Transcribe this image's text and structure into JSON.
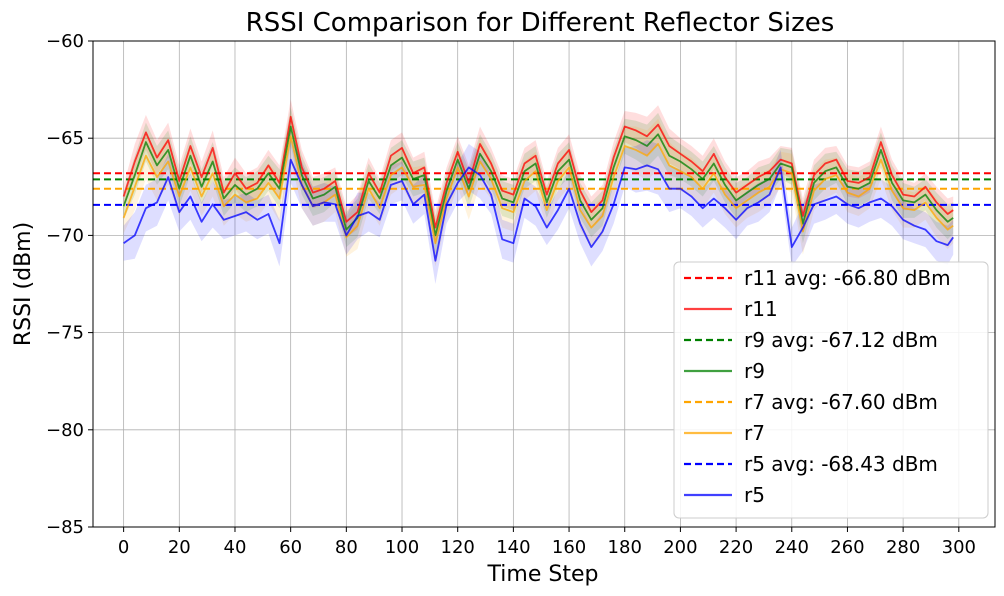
{
  "chart_data": {
    "type": "line",
    "title": "RSSI Comparison for Different Reflector Sizes",
    "xlabel": "Time Step",
    "ylabel": "RSSI (dBm)",
    "xlim": [
      -11,
      313
    ],
    "ylim": [
      -85,
      -60
    ],
    "xticks": [
      0,
      20,
      40,
      60,
      80,
      100,
      120,
      140,
      160,
      180,
      200,
      220,
      240,
      260,
      280,
      300
    ],
    "yticks": [
      -85,
      -80,
      -75,
      -70,
      -65,
      -60
    ],
    "xtick_labels": [
      "0",
      "20",
      "40",
      "60",
      "80",
      "100",
      "120",
      "140",
      "160",
      "180",
      "200",
      "220",
      "240",
      "260",
      "280",
      "300"
    ],
    "ytick_labels": [
      "−85",
      "−80",
      "−75",
      "−70",
      "−65",
      "−60"
    ],
    "grid": true,
    "legend_position": "lower-right",
    "x_points": [
      0,
      4,
      8,
      12,
      16,
      20,
      24,
      28,
      32,
      36,
      40,
      44,
      48,
      52,
      56,
      60,
      64,
      68,
      72,
      76,
      80,
      84,
      88,
      92,
      96,
      100,
      104,
      108,
      112,
      116,
      120,
      124,
      128,
      132,
      136,
      140,
      144,
      148,
      152,
      156,
      160,
      164,
      168,
      172,
      176,
      180,
      184,
      188,
      192,
      196,
      200,
      204,
      208,
      212,
      216,
      220,
      224,
      228,
      232,
      236,
      240,
      244,
      248,
      252,
      256,
      260,
      264,
      268,
      272,
      276,
      280,
      284,
      288,
      292,
      296,
      298
    ],
    "series": [
      {
        "name": "r11",
        "color": "#ff0000",
        "avg": -66.8,
        "avg_label": "r11 avg: -66.80 dBm",
        "values": [
          -68.0,
          -66.2,
          -64.7,
          -66.0,
          -65.1,
          -67.2,
          -65.4,
          -67.0,
          -65.5,
          -67.8,
          -66.8,
          -67.6,
          -67.3,
          -66.4,
          -67.3,
          -63.9,
          -66.5,
          -67.8,
          -67.6,
          -67.2,
          -69.3,
          -68.8,
          -66.8,
          -67.8,
          -65.9,
          -65.5,
          -66.8,
          -66.5,
          -69.6,
          -67.3,
          -65.7,
          -67.3,
          -65.3,
          -66.3,
          -67.7,
          -67.9,
          -66.3,
          -65.9,
          -67.9,
          -66.3,
          -65.6,
          -67.7,
          -68.8,
          -68.2,
          -66.0,
          -64.4,
          -64.6,
          -64.9,
          -64.3,
          -65.4,
          -65.8,
          -66.2,
          -66.7,
          -65.8,
          -67.0,
          -67.8,
          -67.4,
          -67.0,
          -66.7,
          -66.1,
          -66.3,
          -69.0,
          -66.9,
          -66.3,
          -66.1,
          -67.2,
          -67.3,
          -67.0,
          -65.2,
          -66.9,
          -67.9,
          -68.0,
          -67.5,
          -68.3,
          -68.9,
          -68.7
        ],
        "band": [
          0.6,
          0.9,
          0.9,
          0.9,
          0.9,
          0.8,
          0.9,
          0.8,
          0.9,
          0.8,
          0.8,
          0.8,
          0.8,
          0.8,
          0.9,
          0.9,
          0.9,
          0.8,
          0.8,
          0.7,
          0.8,
          0.9,
          0.8,
          0.7,
          0.8,
          0.8,
          0.8,
          0.8,
          0.9,
          0.8,
          0.8,
          0.9,
          0.9,
          0.8,
          0.8,
          0.8,
          0.8,
          0.8,
          0.7,
          0.8,
          0.8,
          0.8,
          0.8,
          0.8,
          0.8,
          0.8,
          0.9,
          1.0,
          1.0,
          0.9,
          0.8,
          0.8,
          0.8,
          0.8,
          0.8,
          0.8,
          0.7,
          0.8,
          0.7,
          0.7,
          0.8,
          0.9,
          0.8,
          0.8,
          0.7,
          0.8,
          0.8,
          0.8,
          0.8,
          0.8,
          0.8,
          0.7,
          0.7,
          0.8,
          0.8,
          0.7
        ]
      },
      {
        "name": "r9",
        "color": "#008000",
        "avg": -67.12,
        "avg_label": "r9 avg: -67.12 dBm",
        "values": [
          -68.5,
          -66.9,
          -65.2,
          -66.4,
          -65.6,
          -67.6,
          -65.9,
          -67.5,
          -66.2,
          -68.1,
          -67.4,
          -67.9,
          -67.6,
          -66.8,
          -67.6,
          -64.4,
          -66.9,
          -68.1,
          -67.9,
          -67.5,
          -69.7,
          -69.1,
          -67.2,
          -68.1,
          -66.4,
          -66.0,
          -67.1,
          -66.9,
          -70.0,
          -67.7,
          -66.1,
          -67.6,
          -65.8,
          -66.7,
          -68.1,
          -68.3,
          -66.7,
          -66.3,
          -68.3,
          -66.7,
          -66.1,
          -68.2,
          -69.2,
          -68.6,
          -66.5,
          -64.9,
          -65.1,
          -65.4,
          -64.8,
          -65.9,
          -66.2,
          -66.6,
          -67.1,
          -66.3,
          -67.4,
          -68.2,
          -67.8,
          -67.4,
          -67.1,
          -66.3,
          -66.5,
          -69.4,
          -67.3,
          -66.7,
          -66.5,
          -67.5,
          -67.6,
          -67.3,
          -65.6,
          -67.3,
          -68.2,
          -68.3,
          -67.9,
          -68.7,
          -69.3,
          -69.1
        ],
        "band": [
          0.7,
          1.0,
          1.0,
          1.0,
          1.0,
          0.9,
          1.0,
          0.9,
          1.0,
          0.9,
          0.9,
          0.9,
          0.9,
          0.9,
          1.0,
          1.0,
          1.0,
          0.9,
          0.9,
          0.8,
          0.9,
          1.0,
          0.9,
          0.8,
          0.9,
          0.9,
          0.9,
          0.9,
          1.0,
          0.9,
          0.9,
          1.0,
          1.0,
          0.9,
          0.9,
          0.9,
          0.9,
          0.9,
          0.8,
          0.9,
          0.9,
          0.9,
          0.9,
          0.9,
          0.9,
          0.9,
          1.0,
          1.1,
          1.1,
          1.0,
          0.9,
          0.9,
          0.9,
          0.9,
          0.9,
          0.9,
          0.8,
          0.9,
          0.8,
          0.8,
          0.9,
          1.0,
          0.9,
          0.9,
          0.8,
          0.9,
          0.9,
          0.9,
          0.9,
          0.9,
          0.9,
          0.8,
          0.8,
          0.9,
          0.9,
          0.8
        ]
      },
      {
        "name": "r7",
        "color": "#ffa500",
        "avg": -67.6,
        "avg_label": "r7 avg: -67.60 dBm",
        "values": [
          -69.1,
          -67.5,
          -65.9,
          -67.0,
          -66.2,
          -68.0,
          -66.5,
          -68.0,
          -66.8,
          -68.5,
          -67.9,
          -68.3,
          -68.1,
          -67.3,
          -68.1,
          -64.9,
          -67.4,
          -68.5,
          -68.3,
          -67.9,
          -70.1,
          -69.5,
          -67.6,
          -68.6,
          -66.9,
          -66.5,
          -67.5,
          -67.4,
          -70.4,
          -68.1,
          -66.5,
          -68.0,
          -66.2,
          -67.1,
          -68.6,
          -68.8,
          -67.2,
          -66.7,
          -68.7,
          -67.2,
          -66.5,
          -68.7,
          -69.6,
          -69.0,
          -67.0,
          -65.4,
          -65.6,
          -65.9,
          -65.3,
          -66.4,
          -66.7,
          -67.0,
          -67.6,
          -66.8,
          -67.9,
          -68.6,
          -68.2,
          -67.8,
          -67.5,
          -66.6,
          -66.8,
          -69.8,
          -67.7,
          -67.1,
          -66.9,
          -67.8,
          -68.0,
          -67.6,
          -66.1,
          -67.7,
          -68.6,
          -68.7,
          -68.3,
          -69.1,
          -69.7,
          -69.5
        ],
        "band": [
          0.8,
          1.2,
          1.2,
          1.2,
          1.2,
          1.0,
          1.2,
          1.0,
          1.2,
          1.0,
          1.0,
          1.0,
          1.0,
          1.0,
          1.2,
          1.2,
          1.2,
          1.0,
          1.0,
          0.9,
          1.0,
          1.2,
          1.0,
          0.9,
          1.0,
          1.0,
          1.0,
          1.0,
          1.2,
          1.0,
          1.0,
          1.2,
          1.2,
          1.0,
          1.0,
          1.0,
          1.0,
          1.0,
          0.9,
          1.0,
          1.0,
          1.0,
          1.0,
          1.0,
          1.0,
          1.0,
          1.2,
          1.3,
          1.3,
          1.2,
          1.0,
          1.0,
          1.0,
          1.0,
          1.0,
          1.0,
          0.9,
          1.0,
          0.9,
          0.9,
          1.0,
          1.2,
          1.0,
          1.0,
          0.9,
          1.0,
          1.0,
          1.0,
          1.0,
          1.0,
          1.0,
          0.9,
          0.9,
          1.0,
          1.0,
          0.9
        ]
      },
      {
        "name": "r5",
        "color": "#0000ff",
        "avg": -68.43,
        "avg_label": "r5 avg: -68.43 dBm",
        "values": [
          -70.4,
          -70.0,
          -68.6,
          -68.3,
          -67.0,
          -68.8,
          -68.0,
          -69.3,
          -68.4,
          -69.2,
          -69.0,
          -68.8,
          -69.2,
          -68.9,
          -70.4,
          -66.1,
          -67.4,
          -68.5,
          -68.3,
          -68.4,
          -70.0,
          -69.0,
          -68.8,
          -69.2,
          -67.4,
          -67.2,
          -68.4,
          -67.9,
          -71.3,
          -68.4,
          -67.3,
          -66.5,
          -66.9,
          -67.9,
          -70.2,
          -70.4,
          -68.1,
          -68.5,
          -69.6,
          -68.7,
          -67.6,
          -69.4,
          -70.6,
          -69.8,
          -68.4,
          -66.5,
          -66.6,
          -66.4,
          -66.6,
          -67.6,
          -67.6,
          -68.0,
          -68.6,
          -68.1,
          -68.6,
          -69.2,
          -68.6,
          -68.3,
          -67.9,
          -66.5,
          -70.6,
          -69.6,
          -68.4,
          -68.2,
          -68.0,
          -68.4,
          -68.6,
          -68.3,
          -68.1,
          -68.5,
          -69.2,
          -69.5,
          -69.7,
          -70.3,
          -70.5,
          -70.1
        ],
        "band": [
          0.9,
          1.2,
          1.2,
          1.2,
          1.2,
          1.0,
          1.2,
          1.0,
          1.2,
          1.0,
          1.0,
          1.0,
          1.0,
          1.0,
          1.2,
          1.2,
          1.2,
          1.0,
          1.0,
          0.9,
          1.0,
          1.2,
          1.0,
          0.9,
          1.0,
          1.0,
          1.0,
          1.0,
          1.2,
          1.0,
          1.0,
          1.2,
          1.2,
          1.0,
          1.0,
          1.0,
          1.0,
          1.0,
          0.9,
          1.0,
          1.0,
          1.0,
          1.0,
          1.0,
          1.0,
          1.0,
          1.2,
          1.3,
          1.3,
          1.2,
          1.0,
          1.0,
          1.0,
          1.0,
          1.0,
          1.0,
          0.9,
          1.0,
          0.9,
          0.9,
          1.0,
          1.2,
          1.0,
          1.0,
          0.9,
          1.0,
          1.0,
          1.0,
          1.0,
          1.0,
          1.0,
          0.9,
          0.9,
          1.0,
          1.0,
          0.9
        ]
      }
    ],
    "legend_entries": [
      {
        "label": "r11 avg: -66.80 dBm",
        "style": "dashed",
        "color": "#ff0000"
      },
      {
        "label": "r11",
        "style": "solid",
        "color": "#ff0000"
      },
      {
        "label": "r9 avg: -67.12 dBm",
        "style": "dashed",
        "color": "#008000"
      },
      {
        "label": "r9",
        "style": "solid",
        "color": "#008000"
      },
      {
        "label": "r7 avg: -67.60 dBm",
        "style": "dashed",
        "color": "#ffa500"
      },
      {
        "label": "r7",
        "style": "solid",
        "color": "#ffa500"
      },
      {
        "label": "r5 avg: -68.43 dBm",
        "style": "dashed",
        "color": "#0000ff"
      },
      {
        "label": "r5",
        "style": "solid",
        "color": "#0000ff"
      }
    ]
  }
}
